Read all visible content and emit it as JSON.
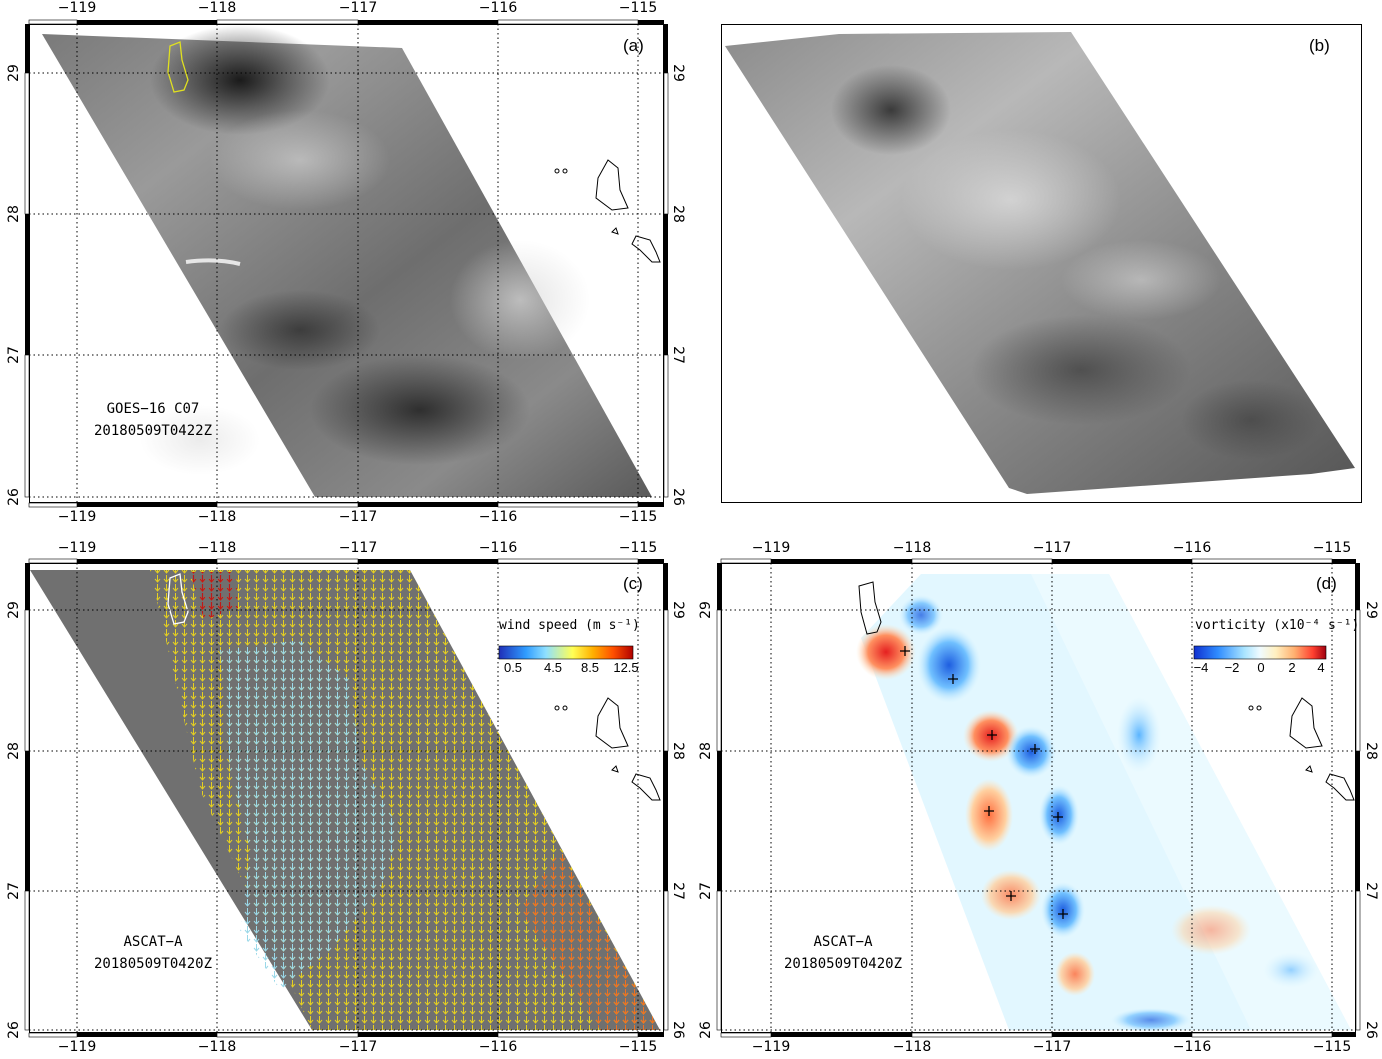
{
  "figure": {
    "lon_ticks": [
      "−119",
      "−118",
      "−117",
      "−116",
      "−115"
    ],
    "lat_ticks": [
      "29",
      "28",
      "27",
      "26"
    ],
    "colors": {
      "frame": "#000000",
      "grid": "#000000",
      "swath_gray": "#707070",
      "coast": "#000000"
    }
  },
  "panels": {
    "a": {
      "letter": "(a)",
      "annotation_line1": "GOES−16 C07",
      "annotation_line2": "20180509T0422Z",
      "contour_color": "#e0e020"
    },
    "b": {
      "letter": "(b)"
    },
    "c": {
      "letter": "(c)",
      "annotation_line1": "ASCAT−A",
      "annotation_line2": "20180509T0420Z",
      "colorbar": {
        "title": "wind speed  (m s⁻¹)",
        "ticks": [
          "0.5",
          "4.5",
          "8.5",
          "12.5"
        ],
        "colors": [
          "#1f2fb8",
          "#2f9cff",
          "#8fe0ff",
          "#ffff55",
          "#ffb000",
          "#ff5000",
          "#b00000"
        ]
      }
    },
    "d": {
      "letter": "(d)",
      "annotation_line1": "ASCAT−A",
      "annotation_line2": "20180509T0420Z",
      "colorbar": {
        "title": "vorticity  (x10⁻⁴ s⁻¹)",
        "ticks": [
          "−4",
          "−2",
          "0",
          "2",
          "4"
        ],
        "colors": [
          "#1030d0",
          "#2f8cff",
          "#a8e4ff",
          "#f0fbff",
          "#fff0c0",
          "#ffb070",
          "#ff4030",
          "#a00010"
        ]
      },
      "markers": "+"
    }
  }
}
